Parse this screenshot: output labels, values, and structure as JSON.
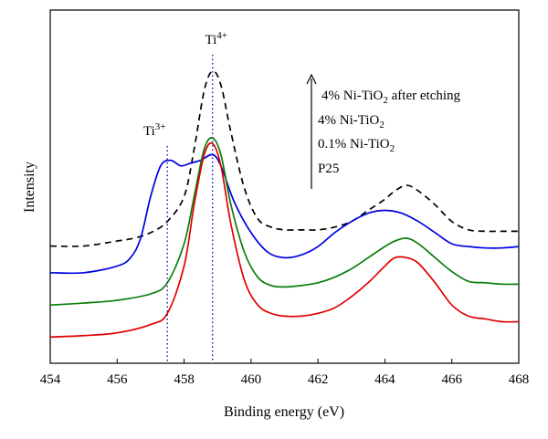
{
  "chart_data": {
    "type": "line",
    "title": "",
    "xlabel": "Binding energy (eV)",
    "ylabel": "Intensity",
    "xlim": [
      454,
      468
    ],
    "ylim": [
      0,
      1
    ],
    "x_ticks": [
      454,
      456,
      458,
      460,
      462,
      464,
      466,
      468
    ],
    "x_tick_labels": [
      "454",
      "456",
      "458",
      "460",
      "462",
      "464",
      "466",
      "468"
    ],
    "y_ticks_shown": false,
    "grid": false,
    "legend_position": "top-right",
    "legend_order_note": "bottom-to-top order indicated by upward arrow",
    "legend": [
      {
        "label": "4% Ni-TiO",
        "subscript": "2",
        "suffix": " after etching"
      },
      {
        "label": "4% Ni-TiO",
        "subscript": "2",
        "suffix": ""
      },
      {
        "label": "0.1% Ni-TiO",
        "subscript": "2",
        "suffix": ""
      },
      {
        "label": "P25",
        "subscript": "",
        "suffix": ""
      }
    ],
    "peak_markers": [
      {
        "label": "Ti",
        "superscript": "3+",
        "x": 457.5
      },
      {
        "label": "Ti",
        "superscript": "4+",
        "x": 458.85
      }
    ],
    "series": [
      {
        "color": "#000000",
        "style": "dashed",
        "x": [
          454,
          455,
          456,
          456.5,
          457,
          457.5,
          458,
          458.3,
          458.6,
          458.85,
          459.1,
          459.4,
          459.8,
          460.2,
          460.6,
          461,
          461.5,
          462,
          462.5,
          463,
          463.5,
          464,
          464.3,
          464.65,
          465,
          465.5,
          466,
          466.5,
          467,
          467.5,
          468
        ],
        "y": [
          0.372,
          0.372,
          0.39,
          0.4,
          0.42,
          0.46,
          0.55,
          0.72,
          0.93,
          1.0,
          0.95,
          0.78,
          0.58,
          0.47,
          0.44,
          0.43,
          0.43,
          0.43,
          0.44,
          0.46,
          0.5,
          0.54,
          0.57,
          0.59,
          0.57,
          0.52,
          0.46,
          0.43,
          0.425,
          0.425,
          0.425
        ]
      },
      {
        "color": "#0000e0",
        "style": "solid",
        "x": [
          454,
          455,
          456,
          456.4,
          456.7,
          457,
          457.3,
          457.6,
          457.9,
          458.2,
          458.5,
          458.85,
          459.1,
          459.5,
          460,
          460.5,
          461,
          461.5,
          462,
          462.5,
          463,
          463.5,
          464,
          464.5,
          465,
          465.5,
          466,
          466.5,
          467,
          467.5,
          468
        ],
        "y": [
          0.276,
          0.276,
          0.3,
          0.33,
          0.4,
          0.55,
          0.66,
          0.68,
          0.66,
          0.67,
          0.68,
          0.7,
          0.66,
          0.53,
          0.42,
          0.35,
          0.33,
          0.34,
          0.37,
          0.42,
          0.46,
          0.49,
          0.5,
          0.49,
          0.46,
          0.42,
          0.38,
          0.37,
          0.365,
          0.365,
          0.37
        ]
      },
      {
        "color": "#0a7d0a",
        "style": "solid",
        "x": [
          454,
          455,
          456,
          457,
          457.5,
          458,
          458.3,
          458.6,
          458.85,
          459.1,
          459.4,
          459.8,
          460.2,
          460.6,
          461,
          461.5,
          462,
          462.5,
          463,
          463.5,
          464,
          464.3,
          464.65,
          465,
          465.5,
          466,
          466.5,
          467,
          467.5,
          468
        ],
        "y": [
          0.16,
          0.167,
          0.177,
          0.2,
          0.24,
          0.38,
          0.55,
          0.72,
          0.76,
          0.7,
          0.52,
          0.35,
          0.26,
          0.23,
          0.225,
          0.23,
          0.24,
          0.26,
          0.29,
          0.33,
          0.37,
          0.39,
          0.4,
          0.38,
          0.33,
          0.28,
          0.245,
          0.24,
          0.235,
          0.235
        ]
      },
      {
        "color": "#e00000",
        "style": "solid",
        "x": [
          454,
          455,
          456,
          457,
          457.5,
          458,
          458.3,
          458.6,
          458.85,
          459.1,
          459.4,
          459.8,
          460.2,
          460.6,
          461,
          461.5,
          462,
          462.5,
          463,
          463.5,
          464,
          464.3,
          464.65,
          465,
          465.5,
          466,
          466.5,
          467,
          467.5,
          468
        ],
        "y": [
          0.045,
          0.05,
          0.06,
          0.09,
          0.13,
          0.3,
          0.52,
          0.7,
          0.74,
          0.66,
          0.45,
          0.25,
          0.16,
          0.13,
          0.12,
          0.12,
          0.13,
          0.15,
          0.19,
          0.24,
          0.3,
          0.33,
          0.33,
          0.31,
          0.24,
          0.16,
          0.12,
          0.11,
          0.1,
          0.1
        ]
      }
    ]
  }
}
